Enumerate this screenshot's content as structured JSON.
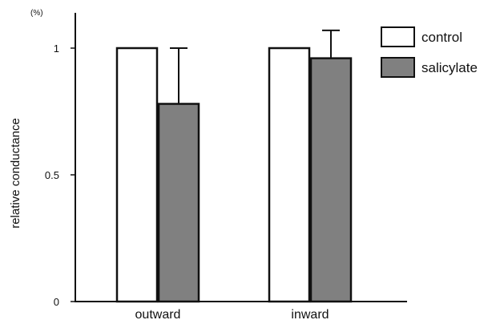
{
  "chart_data": {
    "type": "bar",
    "categories": [
      "outward",
      "inward"
    ],
    "series": [
      {
        "name": "control",
        "values": [
          1.0,
          1.0
        ],
        "errors": [
          0,
          0
        ],
        "color": "#ffffff"
      },
      {
        "name": "salicylate",
        "values": [
          0.78,
          0.96
        ],
        "errors": [
          0.22,
          0.11
        ],
        "color": "#808080"
      }
    ],
    "ylabel": "relative conductance",
    "yunit": "(%)",
    "ylim": [
      0,
      1.12
    ],
    "yticks": [
      0,
      0.5,
      1
    ],
    "ytick_labels": [
      "0",
      "0.5",
      "1"
    ],
    "grid": false,
    "legend_position": "top-right"
  }
}
